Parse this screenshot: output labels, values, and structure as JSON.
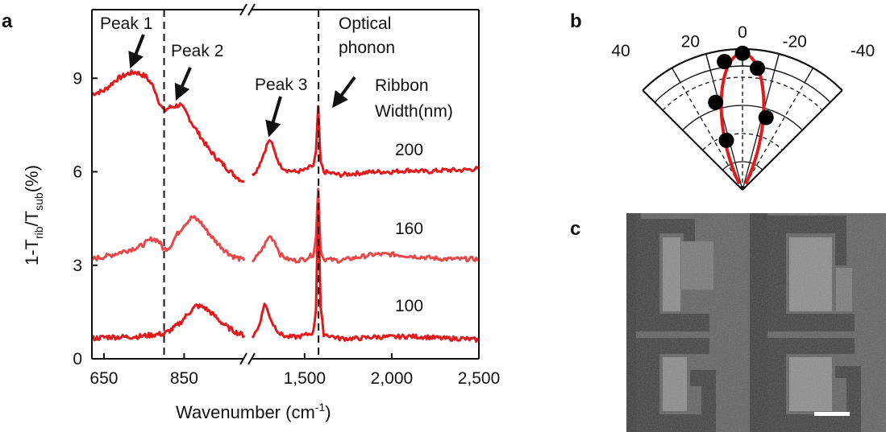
{
  "figure": {
    "panels": {
      "a": "a",
      "b": "b",
      "c": "c"
    }
  },
  "chart_data": [
    {
      "type": "line",
      "panel": "a",
      "title": "",
      "xlabel": "Wavenumber (cm",
      "xlabel_sup": "-1",
      "xlabel_end": ")",
      "ylabel_parts": [
        "1-T",
        "rib",
        "/T",
        "sub",
        "(%)"
      ],
      "x_segments": [
        {
          "range": [
            620,
            1000
          ],
          "ticks": [
            650,
            850
          ],
          "tick_labels": [
            "650",
            "850"
          ]
        },
        {
          "range": [
            1200,
            2500
          ],
          "ticks": [
            1500,
            2000,
            2500
          ],
          "tick_labels": [
            "1,500",
            "2,000",
            "2,500"
          ]
        }
      ],
      "ylim": [
        0,
        11.2
      ],
      "yticks": [
        0,
        3,
        6,
        9
      ],
      "ytick_labels": [
        "0",
        "3",
        "6",
        "9"
      ],
      "vlines": [
        800,
        1580
      ],
      "legend_title": [
        "Ribbon",
        "Width(nm)"
      ],
      "annotations": [
        {
          "text": "Peak 1",
          "x": 730
        },
        {
          "text": "Peak 2",
          "x": 840
        },
        {
          "text": "Peak 3",
          "x": 1300
        },
        {
          "text": [
            "Optical",
            "phonon"
          ],
          "x": 1580
        }
      ],
      "series": [
        {
          "name": "200",
          "color": "#e31a1c",
          "seg1": [
            [
              620,
              8.5
            ],
            [
              650,
              8.6
            ],
            [
              680,
              8.95
            ],
            [
              710,
              9.15
            ],
            [
              730,
              9.2
            ],
            [
              755,
              9.05
            ],
            [
              775,
              8.7
            ],
            [
              790,
              8.15
            ],
            [
              800,
              7.95
            ],
            [
              812,
              8.05
            ],
            [
              825,
              8.1
            ],
            [
              840,
              8.15
            ],
            [
              855,
              7.9
            ],
            [
              870,
              7.55
            ],
            [
              890,
              7.15
            ],
            [
              910,
              6.75
            ],
            [
              930,
              6.45
            ],
            [
              950,
              6.2
            ],
            [
              970,
              5.95
            ],
            [
              990,
              5.75
            ],
            [
              1000,
              5.7
            ]
          ],
          "seg2": [
            [
              1200,
              5.9
            ],
            [
              1230,
              6.1
            ],
            [
              1260,
              6.5
            ],
            [
              1290,
              6.95
            ],
            [
              1305,
              7.0
            ],
            [
              1330,
              6.6
            ],
            [
              1360,
              6.2
            ],
            [
              1400,
              6.05
            ],
            [
              1450,
              6.0
            ],
            [
              1500,
              6.05
            ],
            [
              1550,
              6.2
            ],
            [
              1565,
              6.6
            ],
            [
              1572,
              7.4
            ],
            [
              1578,
              8.1
            ],
            [
              1584,
              7.2
            ],
            [
              1592,
              6.3
            ],
            [
              1610,
              6.0
            ],
            [
              1700,
              5.9
            ],
            [
              1800,
              5.95
            ],
            [
              1900,
              6.0
            ],
            [
              2000,
              6.0
            ],
            [
              2100,
              6.05
            ],
            [
              2200,
              6.0
            ],
            [
              2300,
              6.05
            ],
            [
              2400,
              6.05
            ],
            [
              2500,
              6.1
            ]
          ]
        },
        {
          "name": "160",
          "color": "#e8474a",
          "seg1": [
            [
              620,
              3.2
            ],
            [
              660,
              3.3
            ],
            [
              700,
              3.45
            ],
            [
              740,
              3.6
            ],
            [
              770,
              3.85
            ],
            [
              785,
              3.8
            ],
            [
              800,
              3.5
            ],
            [
              815,
              3.6
            ],
            [
              830,
              3.95
            ],
            [
              850,
              4.3
            ],
            [
              870,
              4.55
            ],
            [
              890,
              4.4
            ],
            [
              910,
              4.05
            ],
            [
              930,
              3.75
            ],
            [
              950,
              3.5
            ],
            [
              970,
              3.3
            ],
            [
              990,
              3.2
            ],
            [
              1000,
              3.15
            ]
          ],
          "seg2": [
            [
              1200,
              3.15
            ],
            [
              1230,
              3.3
            ],
            [
              1260,
              3.55
            ],
            [
              1300,
              3.95
            ],
            [
              1330,
              3.75
            ],
            [
              1360,
              3.35
            ],
            [
              1400,
              3.2
            ],
            [
              1450,
              3.15
            ],
            [
              1500,
              3.2
            ],
            [
              1550,
              3.35
            ],
            [
              1565,
              3.9
            ],
            [
              1572,
              4.8
            ],
            [
              1578,
              5.5
            ],
            [
              1584,
              4.6
            ],
            [
              1592,
              3.5
            ],
            [
              1610,
              3.2
            ],
            [
              1700,
              3.15
            ],
            [
              1800,
              3.25
            ],
            [
              1900,
              3.35
            ],
            [
              2000,
              3.35
            ],
            [
              2100,
              3.3
            ],
            [
              2200,
              3.25
            ],
            [
              2300,
              3.2
            ],
            [
              2400,
              3.2
            ],
            [
              2500,
              3.2
            ]
          ]
        },
        {
          "name": "100",
          "color": "#e31a1c",
          "seg1": [
            [
              620,
              0.65
            ],
            [
              660,
              0.7
            ],
            [
              700,
              0.7
            ],
            [
              740,
              0.72
            ],
            [
              780,
              0.78
            ],
            [
              800,
              0.8
            ],
            [
              820,
              0.95
            ],
            [
              840,
              1.15
            ],
            [
              860,
              1.45
            ],
            [
              880,
              1.7
            ],
            [
              900,
              1.65
            ],
            [
              920,
              1.45
            ],
            [
              940,
              1.2
            ],
            [
              960,
              1.0
            ],
            [
              980,
              0.85
            ],
            [
              1000,
              0.75
            ]
          ],
          "seg2": [
            [
              1200,
              0.7
            ],
            [
              1230,
              0.95
            ],
            [
              1255,
              1.4
            ],
            [
              1270,
              1.8
            ],
            [
              1290,
              1.5
            ],
            [
              1320,
              1.1
            ],
            [
              1360,
              0.8
            ],
            [
              1400,
              0.7
            ],
            [
              1450,
              0.7
            ],
            [
              1500,
              0.75
            ],
            [
              1550,
              0.85
            ],
            [
              1565,
              1.6
            ],
            [
              1572,
              3.4
            ],
            [
              1578,
              5.0
            ],
            [
              1584,
              3.6
            ],
            [
              1592,
              1.6
            ],
            [
              1610,
              0.8
            ],
            [
              1700,
              0.65
            ],
            [
              1800,
              0.65
            ],
            [
              1900,
              0.7
            ],
            [
              2000,
              0.7
            ],
            [
              2100,
              0.72
            ],
            [
              2200,
              0.7
            ],
            [
              2300,
              0.65
            ],
            [
              2400,
              0.65
            ],
            [
              2500,
              0.6
            ]
          ]
        }
      ]
    },
    {
      "type": "polar",
      "panel": "b",
      "angle_ticks": [
        40,
        20,
        0,
        -20,
        -40
      ],
      "angle_tick_labels": [
        "40",
        "20",
        "0",
        "-20",
        "-40"
      ],
      "angle_range": [
        -45,
        45
      ],
      "radial_max": 1.0,
      "points": [
        {
          "angle": 0,
          "r": 0.97
        },
        {
          "angle": 8,
          "r": 0.92
        },
        {
          "angle": -7,
          "r": 0.87
        },
        {
          "angle": 17,
          "r": 0.65
        },
        {
          "angle": -18,
          "r": 0.54
        },
        {
          "angle": 18,
          "r": 0.37
        }
      ],
      "fit_color": "#e31a1c"
    }
  ],
  "image": {
    "panel": "c",
    "description_id": "sem-micrograph"
  }
}
